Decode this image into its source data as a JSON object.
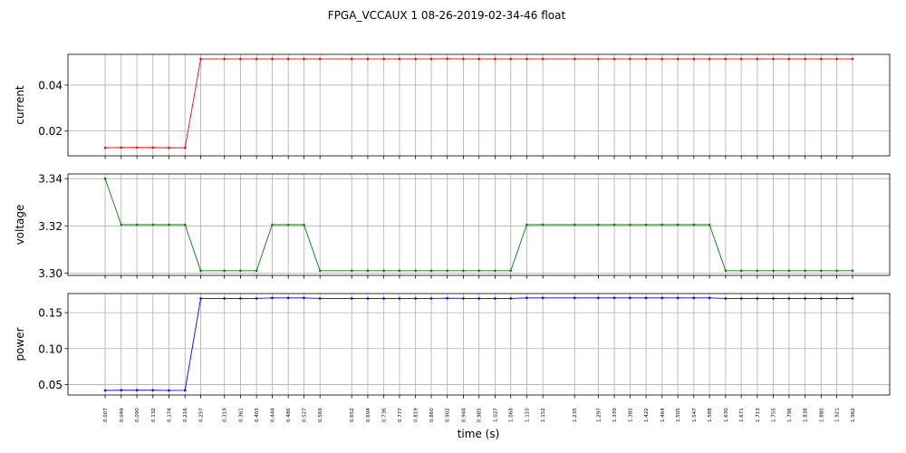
{
  "title": "FPGA_VCCAUX   1   08-26-2019-02-34-46   float",
  "chart_data": {
    "type": "line",
    "xlabel": "time (s)",
    "x": [
      0.007,
      0.049,
      0.09,
      0.132,
      0.174,
      0.216,
      0.257,
      0.319,
      0.361,
      0.403,
      0.444,
      0.486,
      0.527,
      0.569,
      0.652,
      0.694,
      0.736,
      0.777,
      0.819,
      0.86,
      0.902,
      0.944,
      0.985,
      1.027,
      1.068,
      1.11,
      1.152,
      1.235,
      1.297,
      1.339,
      1.38,
      1.422,
      1.464,
      1.505,
      1.547,
      1.588,
      1.63,
      1.671,
      1.713,
      1.755,
      1.796,
      1.838,
      1.88,
      1.921,
      1.962
    ],
    "x_tick_labels": [
      "0.007",
      "0.049",
      "0.090",
      "0.132",
      "0.174",
      "0.216",
      "0.257",
      "0.319",
      "0.361",
      "0.403",
      "0.444",
      "0.486",
      "0.527",
      "0.569",
      "0.652",
      "0.694",
      "0.736",
      "0.777",
      "0.819",
      "0.860",
      "0.902",
      "0.944",
      "0.985",
      "1.027",
      "1.068",
      "1.110",
      "1.152",
      "1.235",
      "1.297",
      "1.339",
      "1.380",
      "1.422",
      "1.464",
      "1.505",
      "1.547",
      "1.588",
      "1.630",
      "1.671",
      "1.713",
      "1.755",
      "1.796",
      "1.838",
      "1.880",
      "1.921",
      "1.962"
    ],
    "grid": true,
    "panels": [
      {
        "ylabel": "current",
        "color": "#ff0000",
        "ylim": [
          0.0092,
          0.0534
        ],
        "yticks": [
          0.02,
          0.04
        ],
        "ytick_labels": [
          "0.02",
          "0.04"
        ],
        "values": [
          0.0127,
          0.0128,
          0.0128,
          0.0128,
          0.0127,
          0.0127,
          0.0514,
          0.0514,
          0.0514,
          0.0514,
          0.0514,
          0.0514,
          0.0514,
          0.0514,
          0.0514,
          0.0514,
          0.0514,
          0.0514,
          0.0514,
          0.0514,
          0.0515,
          0.0514,
          0.0514,
          0.0514,
          0.0514,
          0.0514,
          0.0514,
          0.0514,
          0.0514,
          0.0514,
          0.0514,
          0.0514,
          0.0514,
          0.0514,
          0.0514,
          0.0514,
          0.0514,
          0.0514,
          0.0514,
          0.0514,
          0.0514,
          0.0514,
          0.0514,
          0.0514,
          0.0514
        ]
      },
      {
        "ylabel": "voltage",
        "color": "#008000",
        "ylim": [
          3.299,
          3.342
        ],
        "yticks": [
          3.3,
          3.32,
          3.34
        ],
        "ytick_labels": [
          "3.30",
          "3.32",
          "3.34"
        ],
        "values": [
          3.34,
          3.3205,
          3.3205,
          3.3205,
          3.3205,
          3.3205,
          3.301,
          3.301,
          3.301,
          3.301,
          3.3205,
          3.3205,
          3.3205,
          3.301,
          3.301,
          3.301,
          3.301,
          3.301,
          3.301,
          3.301,
          3.301,
          3.301,
          3.301,
          3.301,
          3.301,
          3.3205,
          3.3205,
          3.3205,
          3.3205,
          3.3205,
          3.3205,
          3.3205,
          3.3205,
          3.3205,
          3.3205,
          3.3205,
          3.301,
          3.301,
          3.301,
          3.301,
          3.301,
          3.301,
          3.301,
          3.301,
          3.301
        ]
      },
      {
        "ylabel": "power",
        "color": "#0000ff",
        "ylim": [
          0.0354,
          0.1766
        ],
        "yticks": [
          0.05,
          0.1,
          0.15
        ],
        "ytick_labels": [
          "0.05",
          "0.10",
          "0.15"
        ],
        "values": [
          0.0418,
          0.0421,
          0.0421,
          0.0421,
          0.0418,
          0.0419,
          0.1698,
          0.1698,
          0.1698,
          0.1698,
          0.1705,
          0.1705,
          0.1705,
          0.1698,
          0.1698,
          0.1698,
          0.1698,
          0.1698,
          0.1698,
          0.1698,
          0.1701,
          0.1698,
          0.1698,
          0.1698,
          0.1698,
          0.1705,
          0.1705,
          0.1705,
          0.1705,
          0.1705,
          0.1705,
          0.1705,
          0.1705,
          0.1705,
          0.1705,
          0.1705,
          0.1698,
          0.1698,
          0.1698,
          0.1698,
          0.1698,
          0.1698,
          0.1698,
          0.1698,
          0.1698
        ]
      }
    ]
  }
}
